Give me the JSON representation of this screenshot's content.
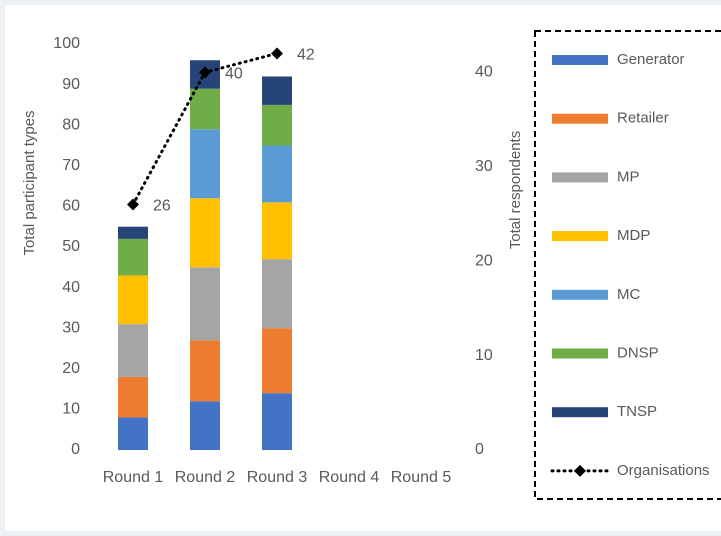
{
  "chart_data": {
    "type": "bar",
    "stacked": true,
    "categories": [
      "Round 1",
      "Round 2",
      "Round 3",
      "Round 4",
      "Round 5"
    ],
    "ylabel": "Total participant types",
    "y2label": "Total respondents",
    "ylim": [
      0,
      100
    ],
    "yticks": [
      0,
      10,
      20,
      30,
      40,
      50,
      60,
      70,
      80,
      90,
      100
    ],
    "y2lim": [
      0,
      43
    ],
    "y2ticks": [
      0,
      10,
      20,
      30,
      40
    ],
    "legend": "right",
    "series": [
      {
        "name": "Generator",
        "color": "#4472c4",
        "values": [
          8,
          12,
          14,
          null,
          null
        ]
      },
      {
        "name": "Retailer",
        "color": "#ed7d31",
        "values": [
          10,
          15,
          16,
          null,
          null
        ]
      },
      {
        "name": "MP",
        "color": "#a5a5a5",
        "values": [
          13,
          18,
          17,
          null,
          null
        ]
      },
      {
        "name": "MDP",
        "color": "#ffc000",
        "values": [
          12,
          17,
          14,
          null,
          null
        ]
      },
      {
        "name": "MC",
        "color": "#5b9bd5",
        "values": [
          0,
          17,
          14,
          null,
          null
        ]
      },
      {
        "name": "DNSP",
        "color": "#70ad47",
        "values": [
          9,
          10,
          10,
          null,
          null
        ]
      },
      {
        "name": "TNSP",
        "color": "#264478",
        "values": [
          3,
          7,
          7,
          null,
          null
        ]
      },
      {
        "name": "Organisations",
        "color": "#000000",
        "type": "line",
        "axis": "y2",
        "values": [
          26,
          40,
          42,
          null,
          null
        ]
      }
    ]
  }
}
